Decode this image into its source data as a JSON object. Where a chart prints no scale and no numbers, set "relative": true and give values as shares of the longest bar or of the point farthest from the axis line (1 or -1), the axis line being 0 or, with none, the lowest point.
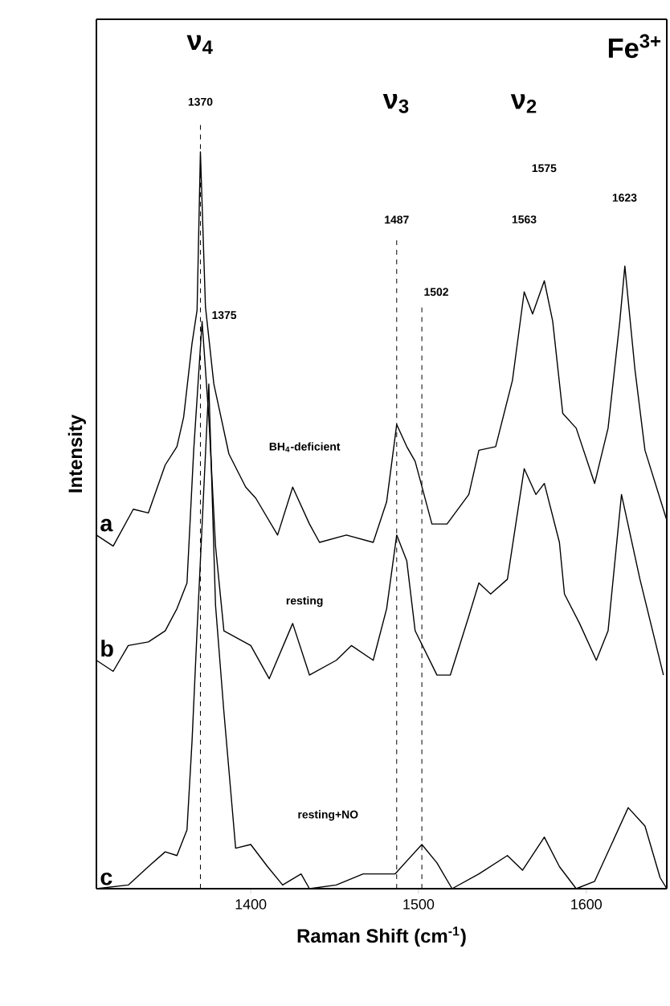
{
  "chart_data": {
    "type": "line",
    "xlabel": "Raman Shift (cm$^{-1}$)",
    "ylabel": "Intensity",
    "relative": true,
    "xlim": [
      1308,
      1648
    ],
    "xticks": [
      1400,
      1500,
      1600
    ],
    "grid": false,
    "series": [
      {
        "name": "a",
        "color": "#000000",
        "x": [
          1308,
          1318,
          1330,
          1339,
          1349,
          1356,
          1360,
          1365,
          1368,
          1370,
          1373,
          1378,
          1387,
          1397,
          1403,
          1416,
          1425,
          1435,
          1441,
          1457,
          1473,
          1481,
          1487,
          1493,
          1498,
          1508,
          1517,
          1530,
          1536,
          1546,
          1556,
          1563,
          1568,
          1575,
          1580,
          1586,
          1594,
          1605,
          1613,
          1620,
          1623,
          1629,
          1635,
          1648
        ],
        "values": [
          0.48,
          0.465,
          0.515,
          0.51,
          0.575,
          0.6,
          0.64,
          0.74,
          0.785,
          1.0,
          0.79,
          0.685,
          0.59,
          0.545,
          0.53,
          0.48,
          0.545,
          0.495,
          0.47,
          0.48,
          0.47,
          0.525,
          0.63,
          0.6,
          0.58,
          0.495,
          0.495,
          0.535,
          0.595,
          0.6,
          0.69,
          0.81,
          0.78,
          0.825,
          0.77,
          0.645,
          0.625,
          0.55,
          0.625,
          0.77,
          0.845,
          0.705,
          0.595,
          0.5
        ]
      },
      {
        "name": "b",
        "color": "#000000",
        "x": [
          1308,
          1318,
          1327,
          1339,
          1349,
          1356,
          1362,
          1366,
          1371,
          1375,
          1379,
          1384,
          1400,
          1411,
          1425,
          1435,
          1451,
          1460,
          1473,
          1481,
          1487,
          1493,
          1498,
          1511,
          1519,
          1530,
          1536,
          1543,
          1553,
          1563,
          1570,
          1575,
          1584,
          1587,
          1596,
          1606,
          1613,
          1621,
          1632,
          1646
        ],
        "values": [
          0.31,
          0.295,
          0.33,
          0.335,
          0.35,
          0.38,
          0.415,
          0.595,
          0.77,
          0.64,
          0.465,
          0.35,
          0.33,
          0.285,
          0.36,
          0.29,
          0.31,
          0.33,
          0.31,
          0.38,
          0.48,
          0.445,
          0.35,
          0.29,
          0.29,
          0.37,
          0.415,
          0.4,
          0.42,
          0.57,
          0.535,
          0.55,
          0.47,
          0.4,
          0.36,
          0.31,
          0.35,
          0.535,
          0.42,
          0.29
        ]
      },
      {
        "name": "c",
        "color": "#000000",
        "x": [
          1308,
          1327,
          1339,
          1349,
          1356,
          1362,
          1365,
          1368,
          1375,
          1379,
          1384,
          1391,
          1400,
          1410,
          1419,
          1430,
          1435,
          1451,
          1467,
          1486,
          1502,
          1511,
          1520,
          1536,
          1553,
          1562,
          1575,
          1584,
          1594,
          1605,
          1625,
          1635,
          1644,
          1648
        ],
        "values": [
          0.0,
          0.005,
          0.03,
          0.05,
          0.045,
          0.08,
          0.2,
          0.35,
          0.685,
          0.385,
          0.24,
          0.055,
          0.06,
          0.03,
          0.005,
          0.02,
          0.0,
          0.005,
          0.02,
          0.02,
          0.06,
          0.035,
          0.0,
          0.02,
          0.045,
          0.025,
          0.07,
          0.03,
          0.0,
          0.01,
          0.11,
          0.085,
          0.015,
          0.0
        ]
      }
    ],
    "ref_lines": [
      {
        "axis": "x",
        "value": 1370,
        "label": "1370",
        "line_style": "dashed"
      },
      {
        "axis": "x",
        "value": 1487,
        "label": "1487",
        "line_style": "dashed"
      },
      {
        "axis": "x",
        "value": 1502,
        "label": "1502",
        "line_style": "dashed"
      }
    ],
    "annotations": [
      "ν$_{4}$",
      "ν$_{3}$",
      "ν$_{2}$",
      "1563",
      "1575",
      "1623",
      "1375",
      "BH$_{4}$-deficient",
      "resting",
      "resting+NO",
      "Fe$^{3+}$"
    ]
  }
}
